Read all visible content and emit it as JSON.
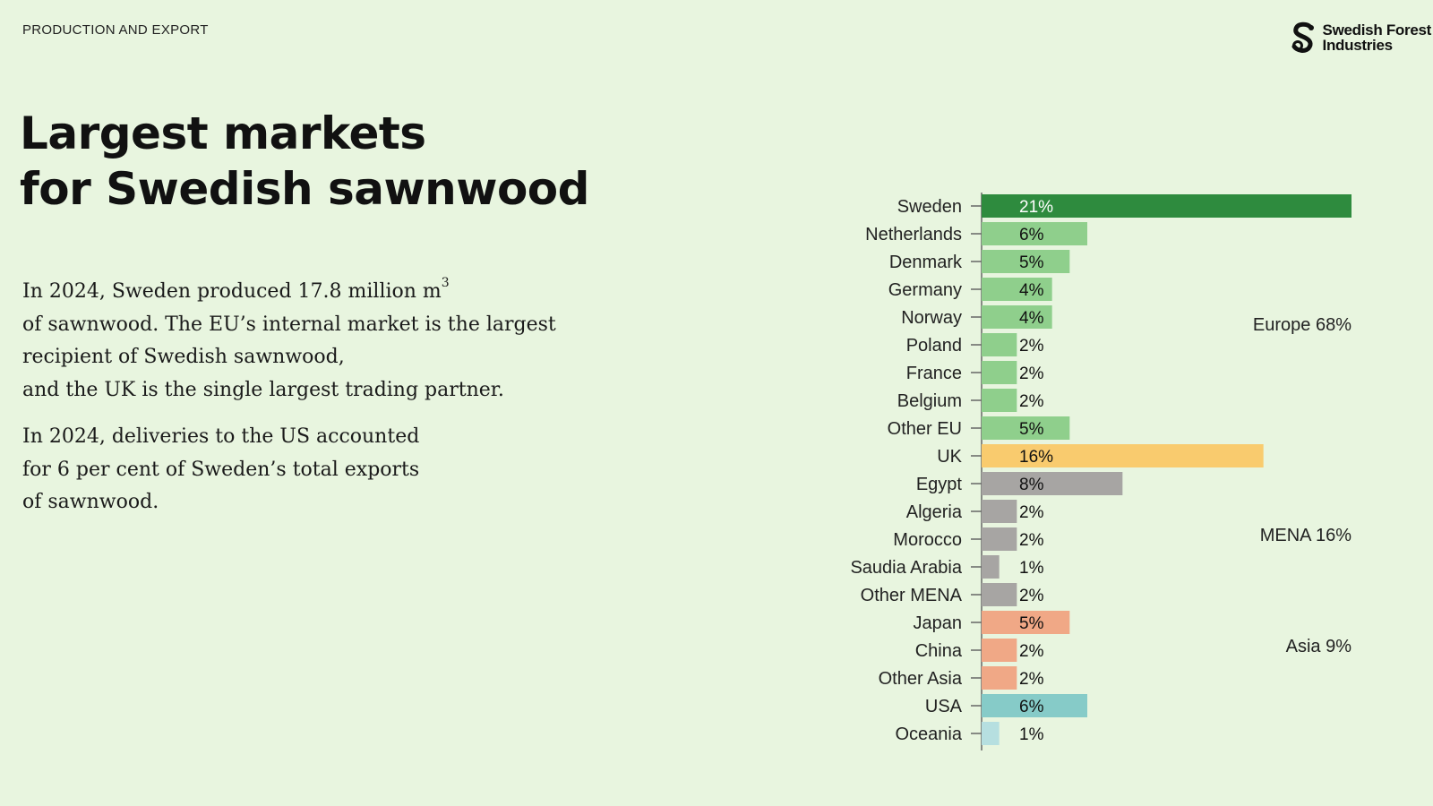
{
  "header": {
    "section_label": "PRODUCTION AND EXPORT",
    "logo_line1": "Swedish Forest",
    "logo_line2": "Industries",
    "logo_icon": "swedish-forest-industries-s-logo"
  },
  "title": {
    "line1": "Largest markets",
    "line2": "for Swedish sawnwood"
  },
  "paragraphs": {
    "p1_line1": "In 2024, Sweden produced 17.8 million m",
    "p1_sup": "3",
    "p1_line2": "of sawnwood. The EU’s internal market is the largest",
    "p1_line3": "recipient of Swedish sawnwood,",
    "p1_line4": "and the UK is the single largest trading partner.",
    "p2_line1": "In 2024, deliveries to the US accounted",
    "p2_line2": "for 6 per cent of Sweden’s total exports",
    "p2_line3": "of sawnwood."
  },
  "chart_data": {
    "type": "bar",
    "orientation": "horizontal",
    "unit": "%",
    "xlim": [
      0,
      21
    ],
    "categories": [
      "Sweden",
      "Netherlands",
      "Denmark",
      "Germany",
      "Norway",
      "Poland",
      "France",
      "Belgium",
      "Other EU",
      "UK",
      "Egypt",
      "Algeria",
      "Morocco",
      "Saudia Arabia",
      "Other MENA",
      "Japan",
      "China",
      "Other Asia",
      "USA",
      "Oceania"
    ],
    "values": [
      21,
      6,
      5,
      4,
      4,
      2,
      2,
      2,
      5,
      16,
      8,
      2,
      2,
      1,
      2,
      5,
      2,
      2,
      6,
      1
    ],
    "value_labels": [
      "21%",
      "6%",
      "5%",
      "4%",
      "4%",
      "2%",
      "2%",
      "2%",
      "5%",
      "16%",
      "8%",
      "2%",
      "2%",
      "1%",
      "2%",
      "5%",
      "2%",
      "2%",
      "6%",
      "1%"
    ],
    "bar_colors": [
      "#2e8b3e",
      "#8fcf8c",
      "#8fcf8c",
      "#8fcf8c",
      "#8fcf8c",
      "#8fcf8c",
      "#8fcf8c",
      "#8fcf8c",
      "#8fcf8c",
      "#f9cb6e",
      "#a7a5a3",
      "#a7a5a3",
      "#a7a5a3",
      "#a7a5a3",
      "#a7a5a3",
      "#f0a886",
      "#f0a886",
      "#f0a886",
      "#86cbc8",
      "#b6dfe0"
    ],
    "label_colors": [
      "#ffffff",
      "#111111",
      "#111111",
      "#111111",
      "#111111",
      "#111111",
      "#111111",
      "#111111",
      "#111111",
      "#111111",
      "#111111",
      "#111111",
      "#111111",
      "#111111",
      "#111111",
      "#111111",
      "#111111",
      "#111111",
      "#111111",
      "#111111"
    ],
    "groups": [
      {
        "label": "Europe 68%",
        "anchor_category": "Norway"
      },
      {
        "label": "MENA 16%",
        "anchor_category": "Morocco"
      },
      {
        "label": "Asia 9%",
        "anchor_category": "China"
      }
    ],
    "grid": false,
    "legend": "none"
  }
}
